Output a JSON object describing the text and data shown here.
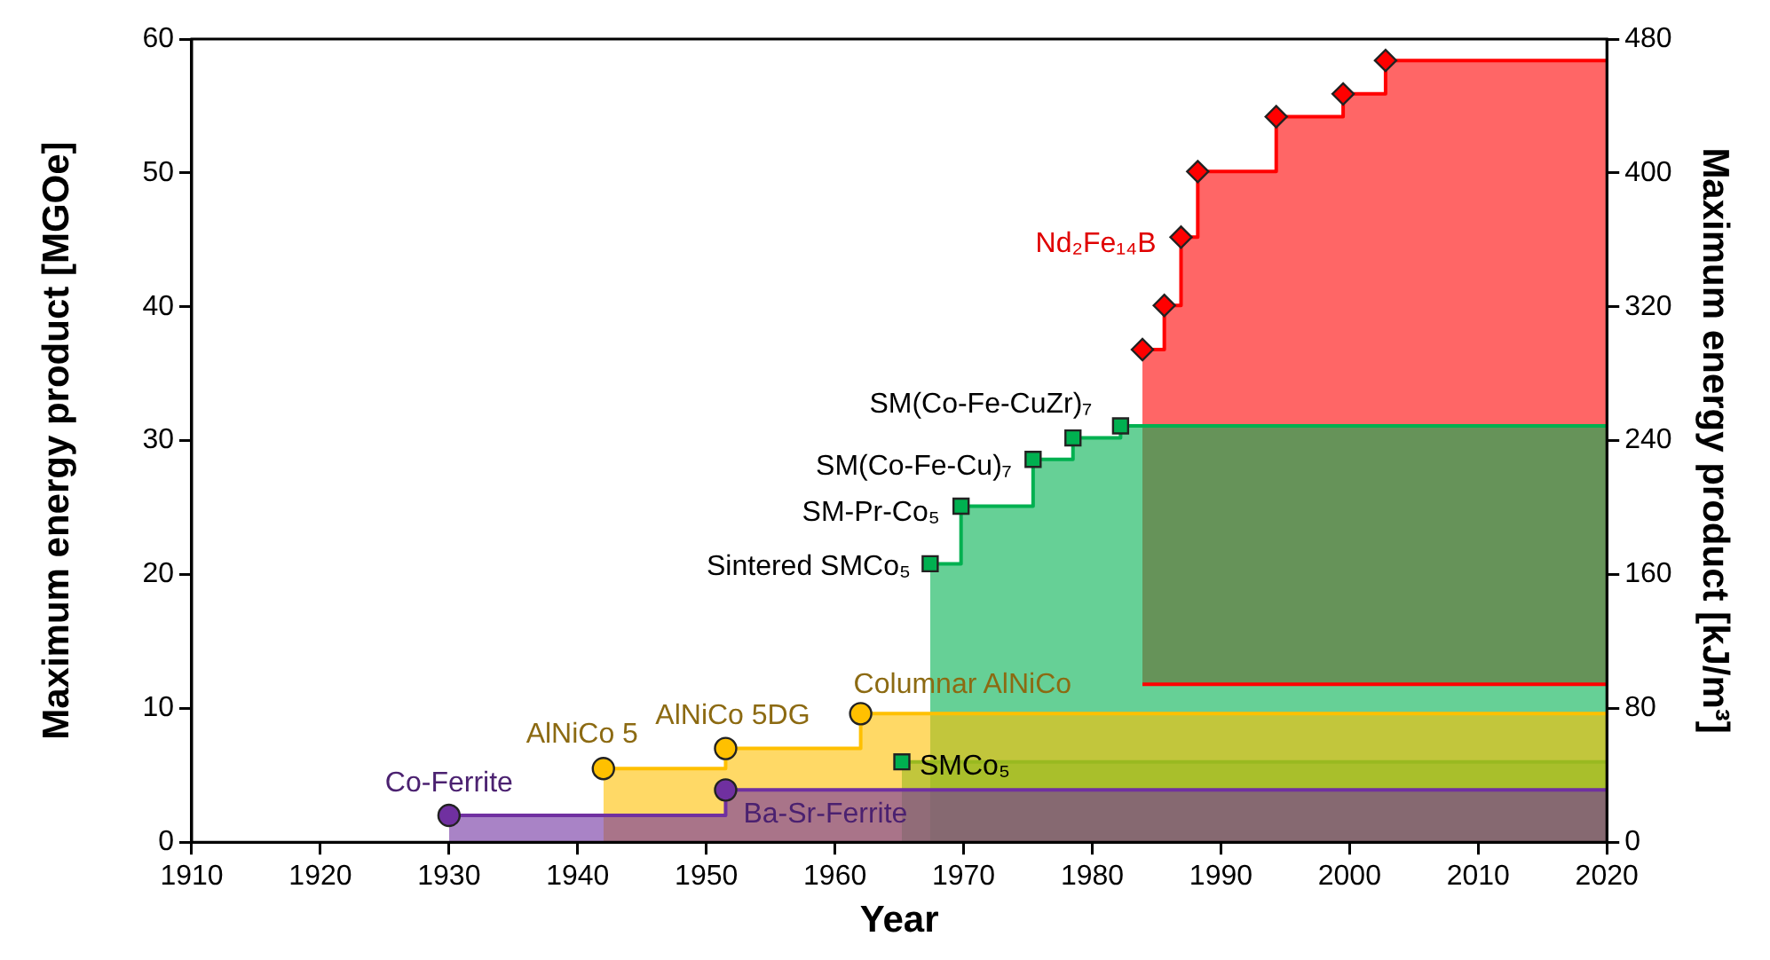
{
  "chart_data": {
    "type": "area",
    "xlabel": "Year",
    "ylabel": "Maximum energy product [MGOe]",
    "y2label": "Maximum energy product [kJ/m³]",
    "xlim": [
      1910,
      2020
    ],
    "xticks": [
      1910,
      1920,
      1930,
      1940,
      1950,
      1960,
      1970,
      1980,
      1990,
      2000,
      2010,
      2020
    ],
    "ylim": [
      0,
      60
    ],
    "yticks": [
      0,
      10,
      20,
      30,
      40,
      50,
      60
    ],
    "y2lim": [
      0,
      480
    ],
    "y2ticks": [
      0,
      80,
      160,
      240,
      320,
      400,
      480
    ],
    "grid": false,
    "legend": false,
    "series": [
      {
        "color": "#7030a0",
        "x": [
          1930,
          1951.5,
          1951.5,
          2020
        ],
        "values": [
          2,
          2,
          3.9,
          3.9
        ]
      },
      {
        "color": "#ffc000",
        "x": [
          1942,
          1951.5,
          1951.5,
          1962,
          1962,
          2020
        ],
        "values": [
          5.5,
          5.5,
          7.0,
          7.0,
          9.6,
          9.6
        ]
      },
      {
        "color": "#00b050",
        "x": [
          1965.2,
          2020
        ],
        "values": [
          6.0,
          6.0
        ]
      },
      {
        "color": "#00b050",
        "x": [
          1967.4,
          1969.8,
          1969.8,
          1975.4,
          1975.4,
          1978.5,
          1978.5,
          1982.2,
          1982.2,
          2020
        ],
        "values": [
          20.8,
          20.8,
          25.1,
          25.1,
          28.6,
          28.6,
          30.2,
          30.2,
          31.1,
          31.1
        ]
      },
      {
        "type": "line",
        "color": "#ff0000",
        "x": [
          1983.9,
          1985.6,
          1985.6,
          1986.9,
          1986.9,
          1988.2,
          1988.2,
          1994.3,
          1994.3,
          1999.5,
          1999.5,
          2002.8,
          2002.8,
          2020
        ],
        "values": [
          36.8,
          36.8,
          40.1,
          40.1,
          45.2,
          45.2,
          50.1,
          50.1,
          54.2,
          54.2,
          55.9,
          55.9,
          58.4,
          58.4
        ],
        "lower": [
          11.8,
          11.8,
          11.8,
          11.8,
          11.8,
          11.8,
          11.8,
          11.8,
          11.8,
          11.8,
          11.8,
          11.8,
          11.8,
          11.8
        ],
        "upper": [
          36.8,
          36.8,
          40.1,
          40.1,
          45.2,
          45.2,
          50.1,
          50.1,
          54.2,
          54.2,
          55.9,
          55.9,
          58.4,
          58.4
        ]
      },
      {
        "type": "line",
        "color": "#ff0000",
        "x": [
          1983.9,
          2020
        ],
        "values": [
          11.8,
          11.8
        ]
      },
      {
        "type": "scatter",
        "marker": "circle",
        "color": "#7030a0",
        "x": [
          1930,
          1951.5
        ],
        "values": [
          2,
          3.9
        ]
      },
      {
        "type": "scatter",
        "marker": "circle",
        "color": "#ffc000",
        "x": [
          1942,
          1951.5,
          1962
        ],
        "values": [
          5.5,
          7.0,
          9.6
        ]
      },
      {
        "type": "scatter",
        "marker": "square",
        "color": "#00b050",
        "x": [
          1965.2
        ],
        "values": [
          6.0
        ]
      },
      {
        "type": "scatter",
        "marker": "square",
        "color": "#00b050",
        "x": [
          1967.4,
          1969.8,
          1975.4,
          1978.5,
          1982.2
        ],
        "values": [
          20.8,
          25.1,
          28.6,
          30.2,
          31.1
        ]
      },
      {
        "type": "scatter",
        "marker": "diamond",
        "color": "#ff0000",
        "x": [
          1983.9,
          1985.6,
          1986.9,
          1988.2,
          1994.3,
          1999.5,
          2002.8
        ],
        "values": [
          36.8,
          40.1,
          45.2,
          50.1,
          54.2,
          55.9,
          58.4
        ]
      }
    ],
    "annotations": [
      {
        "text": "Co-Ferrite",
        "x": 1930,
        "y": 2
      },
      {
        "text": "AlNiCo 5",
        "x": 1942,
        "y": 5.5
      },
      {
        "text": "AlNiCo 5DG",
        "x": 1951.5,
        "y": 7.0
      },
      {
        "text": "Columnar AlNiCo",
        "x": 1962,
        "y": 9.6
      },
      {
        "text": "Ba-Sr-Ferrite",
        "x": 1951.5,
        "y": 3.9
      },
      {
        "text": "SMCo₅",
        "x": 1965.2,
        "y": 6.0
      },
      {
        "text": "Sintered SMCo₅",
        "x": 1967.4,
        "y": 20.8
      },
      {
        "text": "SM-Pr-Co₅",
        "x": 1969.8,
        "y": 25.1
      },
      {
        "text": "SM(Co-Fe-Cu)₇",
        "x": 1975.4,
        "y": 28.6
      },
      {
        "text": "SM(Co-Fe-CuZr)₇",
        "x": 1982.2,
        "y": 31.1
      },
      {
        "text": "Nd₂Fe₁₄B",
        "x": 1986.9,
        "y": 45.2
      }
    ]
  }
}
